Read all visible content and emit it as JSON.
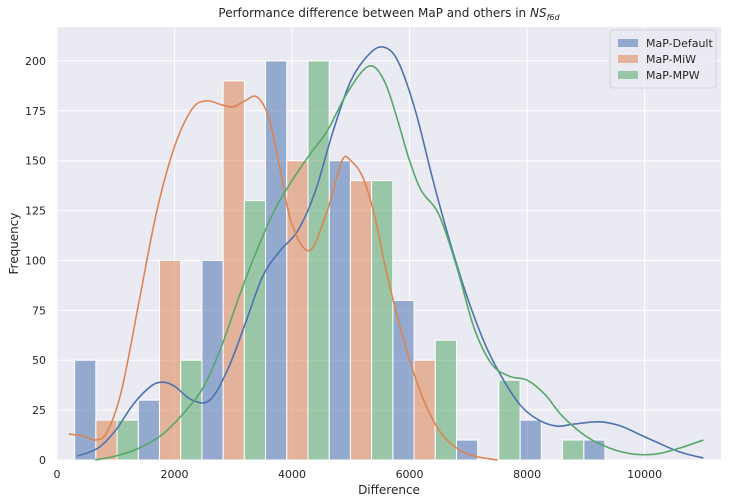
{
  "chart_data": {
    "type": "bar",
    "title_main": "Performance difference between MaP and others in ",
    "title_math": "NS",
    "title_sub": "f6d",
    "xlabel": "Difference",
    "ylabel": "Frequency",
    "xlim": [
      0,
      11300
    ],
    "ylim": [
      0,
      217
    ],
    "xticks": [
      0,
      2000,
      4000,
      6000,
      8000,
      10000
    ],
    "yticks": [
      0,
      25,
      50,
      75,
      100,
      125,
      150,
      175,
      200
    ],
    "bin_edges": [
      300,
      1383,
      2466,
      3549,
      4632,
      5715,
      6798,
      7881,
      8964,
      10047,
      11130
    ],
    "grid": true,
    "legend_position": "top-right",
    "series": [
      {
        "name": "MaP-Default",
        "color": "#4c72b0",
        "counts": [
          50,
          30,
          100,
          200,
          150,
          80,
          10,
          20,
          10,
          0
        ],
        "kde": [
          [
            350,
            2
          ],
          [
            700,
            6
          ],
          [
            1000,
            15
          ],
          [
            1300,
            28
          ],
          [
            1600,
            37
          ],
          [
            1800,
            39
          ],
          [
            2000,
            37
          ],
          [
            2300,
            30
          ],
          [
            2600,
            30
          ],
          [
            2900,
            45
          ],
          [
            3200,
            68
          ],
          [
            3500,
            92
          ],
          [
            3800,
            105
          ],
          [
            4100,
            115
          ],
          [
            4400,
            135
          ],
          [
            4700,
            165
          ],
          [
            5000,
            190
          ],
          [
            5300,
            203
          ],
          [
            5550,
            207
          ],
          [
            5800,
            200
          ],
          [
            6100,
            175
          ],
          [
            6400,
            140
          ],
          [
            6700,
            108
          ],
          [
            7000,
            80
          ],
          [
            7300,
            57
          ],
          [
            7600,
            40
          ],
          [
            7900,
            27
          ],
          [
            8200,
            20
          ],
          [
            8500,
            17
          ],
          [
            8800,
            18
          ],
          [
            9100,
            19
          ],
          [
            9300,
            19
          ],
          [
            9600,
            17
          ],
          [
            9900,
            13
          ],
          [
            10200,
            9
          ],
          [
            10600,
            4
          ],
          [
            11000,
            1
          ]
        ]
      },
      {
        "name": "MaP-MiW",
        "color": "#dd8452",
        "counts": [
          20,
          100,
          190,
          150,
          140,
          50,
          0,
          0,
          0,
          0
        ],
        "kde": [
          [
            200,
            13
          ],
          [
            450,
            12
          ],
          [
            650,
            10
          ],
          [
            850,
            14
          ],
          [
            1100,
            35
          ],
          [
            1400,
            80
          ],
          [
            1700,
            125
          ],
          [
            2000,
            157
          ],
          [
            2300,
            176
          ],
          [
            2550,
            180
          ],
          [
            2800,
            178
          ],
          [
            3000,
            177
          ],
          [
            3200,
            180
          ],
          [
            3400,
            182
          ],
          [
            3600,
            172
          ],
          [
            3800,
            145
          ],
          [
            4000,
            118
          ],
          [
            4300,
            105
          ],
          [
            4600,
            125
          ],
          [
            4850,
            150
          ],
          [
            5000,
            150
          ],
          [
            5200,
            142
          ],
          [
            5400,
            123
          ],
          [
            5600,
            95
          ],
          [
            5900,
            60
          ],
          [
            6200,
            33
          ],
          [
            6500,
            15
          ],
          [
            6800,
            6
          ],
          [
            7100,
            2
          ],
          [
            7500,
            0
          ]
        ]
      },
      {
        "name": "MaP-MPW",
        "color": "#55a868",
        "counts": [
          20,
          50,
          130,
          200,
          140,
          60,
          40,
          10,
          0,
          0
        ],
        "kde": [
          [
            650,
            0
          ],
          [
            1000,
            2
          ],
          [
            1400,
            6
          ],
          [
            1800,
            13
          ],
          [
            2200,
            25
          ],
          [
            2500,
            37
          ],
          [
            2800,
            57
          ],
          [
            3100,
            82
          ],
          [
            3400,
            105
          ],
          [
            3700,
            125
          ],
          [
            4000,
            140
          ],
          [
            4300,
            153
          ],
          [
            4600,
            165
          ],
          [
            4900,
            182
          ],
          [
            5200,
            195
          ],
          [
            5400,
            197
          ],
          [
            5600,
            188
          ],
          [
            5800,
            170
          ],
          [
            6000,
            150
          ],
          [
            6200,
            135
          ],
          [
            6500,
            123
          ],
          [
            6800,
            97
          ],
          [
            7100,
            66
          ],
          [
            7400,
            48
          ],
          [
            7700,
            42
          ],
          [
            8000,
            40
          ],
          [
            8300,
            33
          ],
          [
            8600,
            22
          ],
          [
            9000,
            12
          ],
          [
            9400,
            6
          ],
          [
            9800,
            3
          ],
          [
            10200,
            3
          ],
          [
            10600,
            6
          ],
          [
            11000,
            10
          ]
        ]
      }
    ]
  }
}
